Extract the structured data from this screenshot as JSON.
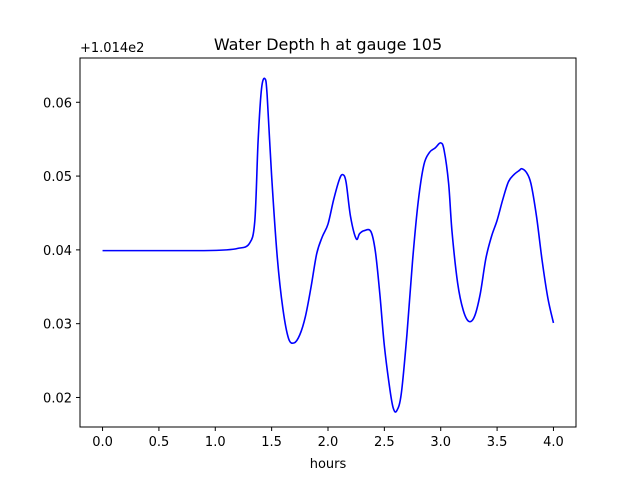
{
  "chart_data": {
    "type": "line",
    "title": "Water Depth h at gauge 105",
    "xlabel": "hours",
    "ylabel": "",
    "y_offset_label": "+1.014e2",
    "y_offset": 101.4,
    "xlim": [
      -0.2,
      4.2
    ],
    "ylim": [
      0.016,
      0.066
    ],
    "x_ticks": [
      0.0,
      0.5,
      1.0,
      1.5,
      2.0,
      2.5,
      3.0,
      3.5,
      4.0
    ],
    "x_tick_labels": [
      "0.0",
      "0.5",
      "1.0",
      "1.5",
      "2.0",
      "2.5",
      "3.0",
      "3.5",
      "4.0"
    ],
    "y_ticks": [
      0.02,
      0.03,
      0.04,
      0.05,
      0.06
    ],
    "y_tick_labels": [
      "0.02",
      "0.03",
      "0.04",
      "0.05",
      "0.06"
    ],
    "grid": false,
    "series": [
      {
        "color": "#0000ff",
        "x": [
          0.0,
          0.5,
          0.9,
          1.1,
          1.2,
          1.3,
          1.35,
          1.38,
          1.41,
          1.44,
          1.46,
          1.5,
          1.55,
          1.6,
          1.65,
          1.7,
          1.75,
          1.8,
          1.85,
          1.9,
          1.95,
          2.0,
          2.05,
          2.1,
          2.13,
          2.16,
          2.2,
          2.25,
          2.28,
          2.32,
          2.38,
          2.42,
          2.46,
          2.5,
          2.55,
          2.58,
          2.61,
          2.65,
          2.7,
          2.75,
          2.8,
          2.85,
          2.9,
          2.95,
          3.0,
          3.03,
          3.07,
          3.1,
          3.15,
          3.2,
          3.25,
          3.3,
          3.35,
          3.4,
          3.45,
          3.5,
          3.55,
          3.6,
          3.65,
          3.7,
          3.72,
          3.76,
          3.8,
          3.85,
          3.9,
          3.95,
          4.0
        ],
        "y": [
          0.0399,
          0.0399,
          0.0399,
          0.04,
          0.0402,
          0.0408,
          0.0438,
          0.0548,
          0.0618,
          0.0632,
          0.061,
          0.05,
          0.039,
          0.032,
          0.028,
          0.0274,
          0.0285,
          0.031,
          0.035,
          0.0395,
          0.0418,
          0.0435,
          0.0468,
          0.0495,
          0.0502,
          0.0492,
          0.0445,
          0.0415,
          0.0422,
          0.0426,
          0.0425,
          0.0398,
          0.034,
          0.027,
          0.021,
          0.0185,
          0.0182,
          0.0205,
          0.0285,
          0.0385,
          0.0465,
          0.0515,
          0.0532,
          0.0538,
          0.0545,
          0.0535,
          0.049,
          0.0425,
          0.0355,
          0.0318,
          0.0303,
          0.031,
          0.034,
          0.0388,
          0.0418,
          0.044,
          0.0468,
          0.0492,
          0.0502,
          0.0508,
          0.051,
          0.0505,
          0.049,
          0.0445,
          0.0385,
          0.0335,
          0.0301
        ]
      }
    ]
  }
}
